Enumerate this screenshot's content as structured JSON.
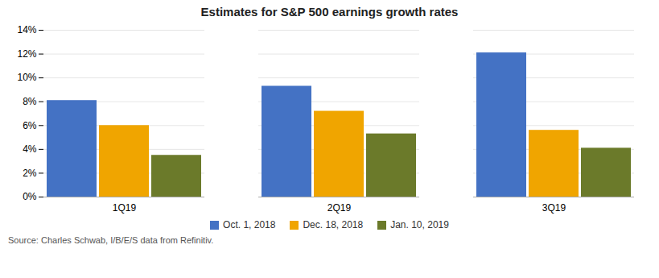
{
  "chart_data": {
    "type": "bar",
    "title": "Estimates for S&P 500 earnings growth rates",
    "categories": [
      "1Q19",
      "2Q19",
      "3Q19"
    ],
    "series": [
      {
        "name": "Oct. 1, 2018",
        "color": "#4472C4",
        "values": [
          8.1,
          9.3,
          12.1
        ]
      },
      {
        "name": "Dec. 18, 2018",
        "color": "#F0A500",
        "values": [
          6.0,
          7.2,
          5.6
        ]
      },
      {
        "name": "Jan. 10, 2019",
        "color": "#6B7A2A",
        "values": [
          3.5,
          5.3,
          4.1
        ]
      }
    ],
    "ylim": [
      0,
      14
    ],
    "yticks": [
      {
        "value": 0,
        "label": "0%"
      },
      {
        "value": 2,
        "label": "2%"
      },
      {
        "value": 4,
        "label": "4%"
      },
      {
        "value": 6,
        "label": "6%"
      },
      {
        "value": 8,
        "label": "8%"
      },
      {
        "value": 10,
        "label": "10%"
      },
      {
        "value": 12,
        "label": "12%"
      },
      {
        "value": 14,
        "label": "14%"
      }
    ],
    "grid": true,
    "legend": "bottom",
    "annotations": [
      "Source: Charles Schwab, I/B/E/S data from Refinitiv."
    ]
  }
}
